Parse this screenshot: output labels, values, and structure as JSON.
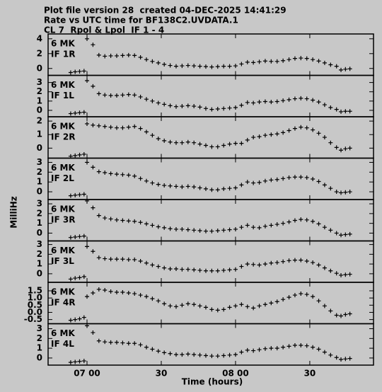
{
  "chart_data": {
    "type": "scatter",
    "title_lines": [
      "Plot file version 28  created 04-DEC-2025 14:41:29",
      "Rate vs UTC time for BF138C2.UVDATA.1",
      "CL 7  Rpol & Lpol  IF 1 - 4"
    ],
    "ylabel": "MilliHz",
    "xlabel": "Time (hours)",
    "xlim": [
      6.738,
      8.929
    ],
    "xticks": [
      {
        "value": 7.0,
        "label": "07 00"
      },
      {
        "value": 7.5,
        "label": "30"
      },
      {
        "value": 8.0,
        "label": "08 00"
      },
      {
        "value": 8.5,
        "label": "30"
      }
    ],
    "color": "#000000",
    "x": [
      6.89,
      6.92,
      6.95,
      6.98,
      7.0,
      7.04,
      7.08,
      7.12,
      7.16,
      7.2,
      7.24,
      7.28,
      7.32,
      7.36,
      7.4,
      7.44,
      7.48,
      7.52,
      7.56,
      7.6,
      7.64,
      7.68,
      7.72,
      7.76,
      7.8,
      7.84,
      7.88,
      7.92,
      7.96,
      8.0,
      8.04,
      8.08,
      8.12,
      8.16,
      8.2,
      8.24,
      8.28,
      8.32,
      8.36,
      8.4,
      8.44,
      8.48,
      8.52,
      8.56,
      8.6,
      8.64,
      8.68,
      8.71,
      8.74,
      8.77
    ],
    "panels": [
      {
        "source": "6 MK",
        "label": "IF 1R",
        "ylim": [
          -0.93,
          4.65
        ],
        "yticks": [
          0,
          2,
          4
        ],
        "values": [
          -0.55,
          -0.45,
          -0.4,
          -0.35,
          4.0,
          3.2,
          1.8,
          1.65,
          1.7,
          1.7,
          1.75,
          1.8,
          1.75,
          1.5,
          1.2,
          0.95,
          0.75,
          0.55,
          0.4,
          0.3,
          0.35,
          0.4,
          0.35,
          0.3,
          0.25,
          0.2,
          0.25,
          0.3,
          0.3,
          0.35,
          0.6,
          0.85,
          0.8,
          0.9,
          1.0,
          0.95,
          0.95,
          1.05,
          1.2,
          1.35,
          1.4,
          1.35,
          1.2,
          1.0,
          0.75,
          0.5,
          0.3,
          -0.2,
          -0.1,
          -0.05
        ]
      },
      {
        "source": "6 MK",
        "label": "IF 1L",
        "ylim": [
          -0.69,
          3.77
        ],
        "yticks": [
          0,
          1,
          2,
          3
        ],
        "values": [
          -0.35,
          -0.3,
          -0.25,
          -0.2,
          3.2,
          2.6,
          1.8,
          1.65,
          1.6,
          1.6,
          1.65,
          1.7,
          1.65,
          1.45,
          1.2,
          1.0,
          0.8,
          0.65,
          0.5,
          0.4,
          0.45,
          0.5,
          0.45,
          0.35,
          0.2,
          0.1,
          0.15,
          0.2,
          0.25,
          0.3,
          0.55,
          0.85,
          0.8,
          0.9,
          0.95,
          0.9,
          0.95,
          1.05,
          1.15,
          1.25,
          1.3,
          1.25,
          1.1,
          0.9,
          0.6,
          0.3,
          0.1,
          -0.15,
          -0.1,
          -0.1
        ]
      },
      {
        "source": "6 MK",
        "label": "IF 2R",
        "ylim": [
          -0.74,
          2.32
        ],
        "yticks": [
          0,
          1,
          2
        ],
        "values": [
          -0.6,
          -0.55,
          -0.5,
          -0.45,
          1.8,
          1.7,
          1.65,
          1.6,
          1.55,
          1.5,
          1.5,
          1.55,
          1.6,
          1.45,
          1.2,
          0.95,
          0.7,
          0.55,
          0.45,
          0.4,
          0.4,
          0.45,
          0.4,
          0.3,
          0.2,
          0.1,
          0.1,
          0.2,
          0.3,
          0.35,
          0.35,
          0.6,
          0.8,
          0.85,
          0.95,
          1.0,
          1.05,
          1.15,
          1.3,
          1.45,
          1.55,
          1.5,
          1.35,
          1.1,
          0.8,
          0.4,
          0.05,
          -0.15,
          -0.05,
          0
        ]
      },
      {
        "source": "6 MK",
        "label": "IF 2L",
        "ylim": [
          -0.79,
          3.43
        ],
        "yticks": [
          0,
          1,
          2,
          3
        ],
        "values": [
          -0.4,
          -0.35,
          -0.3,
          -0.25,
          3.0,
          2.5,
          2.05,
          1.95,
          1.85,
          1.8,
          1.75,
          1.7,
          1.6,
          1.35,
          1.1,
          0.9,
          0.75,
          0.65,
          0.6,
          0.55,
          0.5,
          0.55,
          0.5,
          0.4,
          0.3,
          0.2,
          0.2,
          0.3,
          0.35,
          0.4,
          0.7,
          1.0,
          0.9,
          0.95,
          1.1,
          1.2,
          1.25,
          1.35,
          1.45,
          1.5,
          1.5,
          1.45,
          1.3,
          1.05,
          0.7,
          0.35,
          0.0,
          -0.1,
          -0.05,
          0
        ]
      },
      {
        "source": "6 MK",
        "label": "IF 3R",
        "ylim": [
          -0.8,
          3.44
        ],
        "yticks": [
          0,
          1,
          2,
          3
        ],
        "values": [
          -0.45,
          -0.4,
          -0.35,
          -0.3,
          3.3,
          2.6,
          1.8,
          1.55,
          1.45,
          1.35,
          1.3,
          1.25,
          1.2,
          1.1,
          0.95,
          0.8,
          0.65,
          0.55,
          0.45,
          0.4,
          0.4,
          0.35,
          0.3,
          0.25,
          0.2,
          0.2,
          0.25,
          0.3,
          0.35,
          0.4,
          0.6,
          0.8,
          0.6,
          0.55,
          0.7,
          0.8,
          0.9,
          1.0,
          1.15,
          1.3,
          1.4,
          1.35,
          1.2,
          0.95,
          0.6,
          0.3,
          0.0,
          -0.2,
          -0.15,
          -0.1
        ]
      },
      {
        "source": "6 MK",
        "label": "IF 3L",
        "ylim": [
          -0.88,
          3.37
        ],
        "yticks": [
          0,
          1,
          2,
          3
        ],
        "values": [
          -0.55,
          -0.45,
          -0.4,
          -0.3,
          2.8,
          2.3,
          1.65,
          1.55,
          1.5,
          1.5,
          1.5,
          1.45,
          1.45,
          1.3,
          1.1,
          0.9,
          0.75,
          0.6,
          0.5,
          0.5,
          0.45,
          0.45,
          0.4,
          0.35,
          0.3,
          0.3,
          0.3,
          0.35,
          0.4,
          0.45,
          0.75,
          1.0,
          0.95,
          0.9,
          1.0,
          1.1,
          1.15,
          1.25,
          1.35,
          1.4,
          1.4,
          1.3,
          1.15,
          0.9,
          0.6,
          0.3,
          0.05,
          -0.15,
          -0.1,
          -0.05
        ]
      },
      {
        "source": "6 MK",
        "label": "IF 4R",
        "ylim": [
          -0.79,
          2.09
        ],
        "yticks": [
          -0.5,
          {
            "value": 0,
            "label": "0.0"
          },
          0.5,
          {
            "value": 1,
            "label": "1.0"
          },
          1.5
        ],
        "values": [
          -0.55,
          -0.5,
          -0.45,
          -0.35,
          1.1,
          1.35,
          1.6,
          1.55,
          1.45,
          1.4,
          1.4,
          1.35,
          1.3,
          1.2,
          1.1,
          0.95,
          0.8,
          0.6,
          0.45,
          0.4,
          0.5,
          0.6,
          0.55,
          0.45,
          0.35,
          0.2,
          0.15,
          0.2,
          0.35,
          0.45,
          0.55,
          0.4,
          0.3,
          0.45,
          0.55,
          0.65,
          0.75,
          0.9,
          1.05,
          1.2,
          1.3,
          1.25,
          1.1,
          0.8,
          0.45,
          0.1,
          -0.2,
          -0.25,
          -0.15,
          -0.1
        ]
      },
      {
        "source": "6 MK",
        "label": "IF 4L",
        "ylim": [
          -0.73,
          3.51
        ],
        "yticks": [
          0,
          1,
          2,
          3
        ],
        "values": [
          -0.45,
          -0.4,
          -0.35,
          -0.3,
          3.3,
          2.6,
          1.75,
          1.65,
          1.6,
          1.6,
          1.55,
          1.5,
          1.5,
          1.35,
          1.1,
          0.9,
          0.7,
          0.55,
          0.45,
          0.35,
          0.35,
          0.4,
          0.35,
          0.3,
          0.25,
          0.2,
          0.2,
          0.25,
          0.3,
          0.35,
          0.6,
          0.8,
          0.75,
          0.85,
          0.95,
          1.0,
          1.0,
          1.1,
          1.2,
          1.3,
          1.3,
          1.25,
          1.1,
          0.9,
          0.6,
          0.3,
          0.05,
          -0.15,
          -0.1,
          -0.05
        ]
      }
    ]
  }
}
